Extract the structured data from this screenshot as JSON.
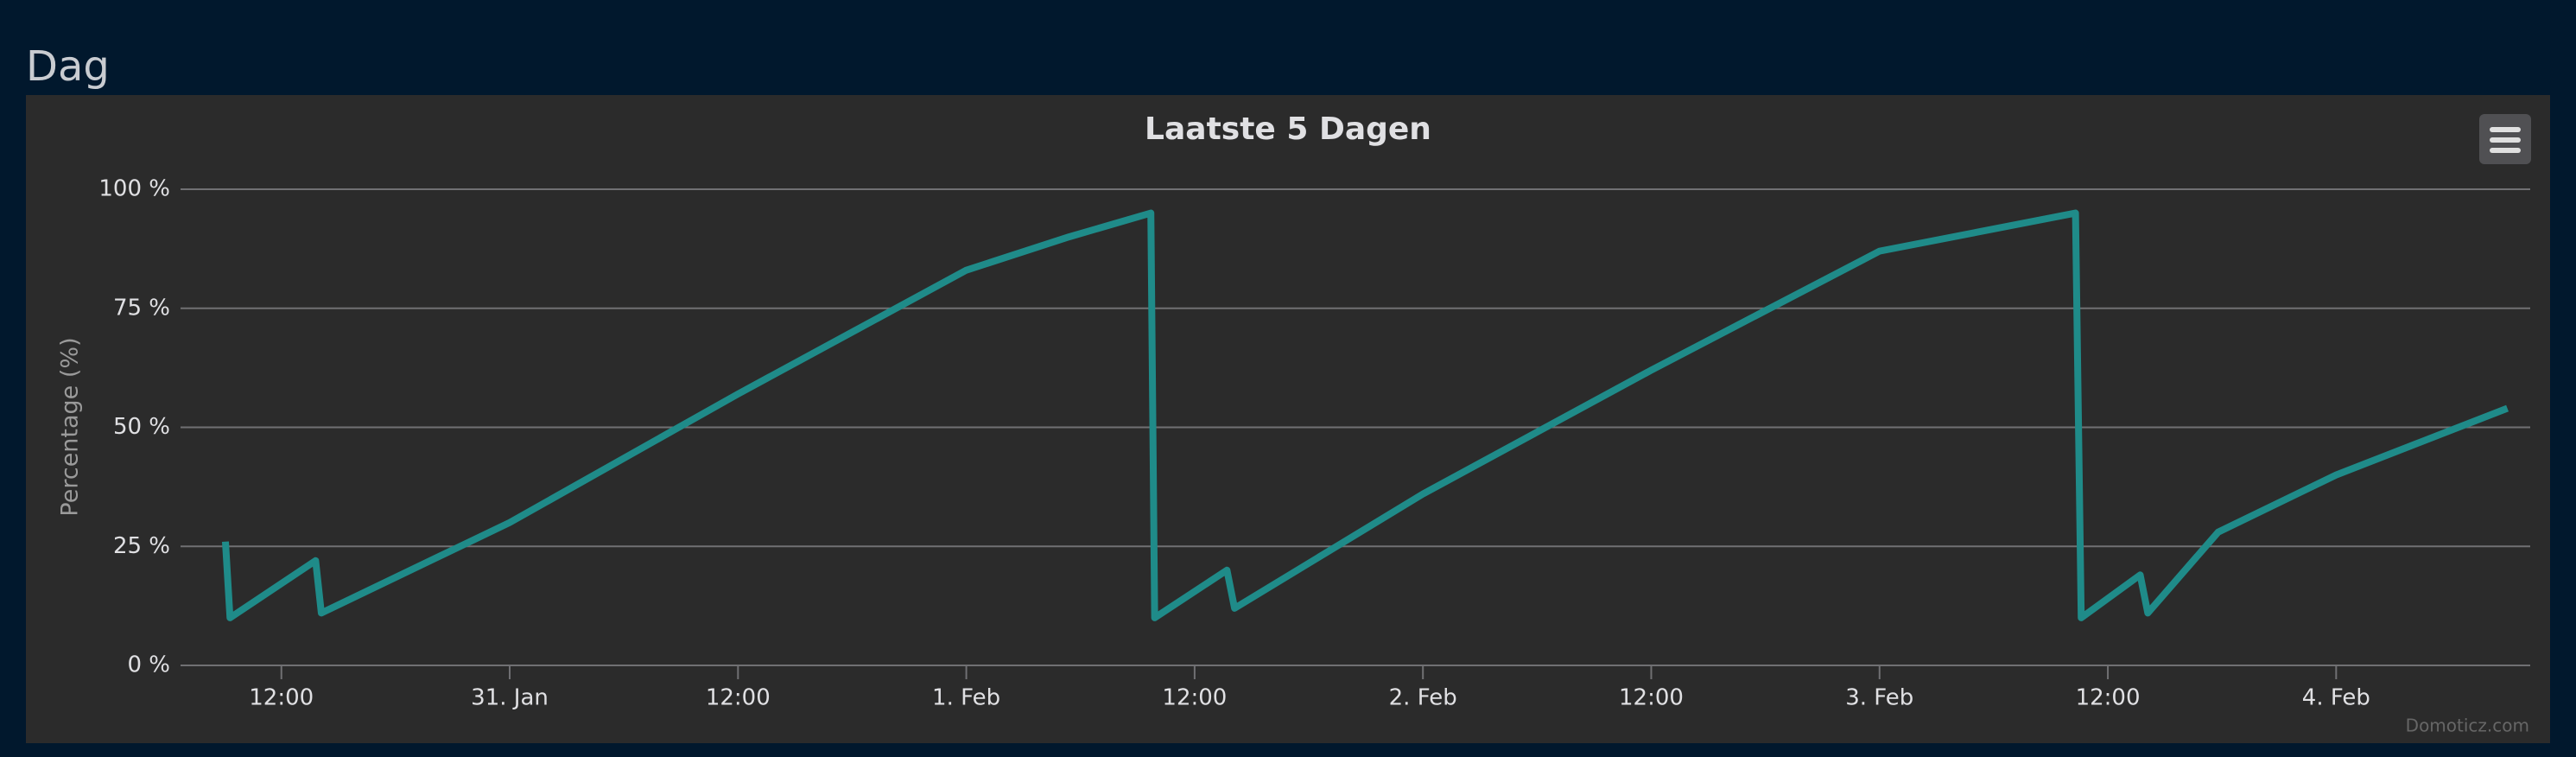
{
  "heading": "Dag",
  "credit": "Domoticz.com",
  "chart_data": {
    "type": "line",
    "title": "Laatste 5 Dagen",
    "y_label": "Percentage (%)",
    "x": [
      9.06,
      9.3,
      13.8,
      14.1,
      24,
      36,
      48,
      53.4,
      57.7,
      57.9,
      61.7,
      62.1,
      72,
      84,
      96,
      106.3,
      106.6,
      109.7,
      110.1,
      113.8,
      120,
      129
    ],
    "series": [
      {
        "name": "Percentage",
        "color": "#1f8b89",
        "values": [
          26,
          10,
          22,
          11,
          30,
          57,
          83,
          90,
          95,
          10,
          20,
          12,
          36,
          62,
          87,
          95,
          10,
          19,
          11,
          28,
          40,
          54
        ]
      }
    ],
    "xlim": [
      6.7,
      130.2
    ],
    "xticks": [
      {
        "value": 12,
        "label": "12:00"
      },
      {
        "value": 24,
        "label": "31. Jan"
      },
      {
        "value": 36,
        "label": "12:00"
      },
      {
        "value": 48,
        "label": "1. Feb"
      },
      {
        "value": 60,
        "label": "12:00"
      },
      {
        "value": 72,
        "label": "2. Feb"
      },
      {
        "value": 84,
        "label": "12:00"
      },
      {
        "value": 96,
        "label": "3. Feb"
      },
      {
        "value": 108,
        "label": "12:00"
      },
      {
        "value": 120,
        "label": "4. Feb"
      }
    ],
    "ylim": [
      0,
      100
    ],
    "yticks": [
      {
        "value": 0,
        "label": "0 %"
      },
      {
        "value": 25,
        "label": "25 %"
      },
      {
        "value": 50,
        "label": "50 %"
      },
      {
        "value": 75,
        "label": "75 %"
      },
      {
        "value": 100,
        "label": "100 %"
      }
    ],
    "grid": true
  }
}
